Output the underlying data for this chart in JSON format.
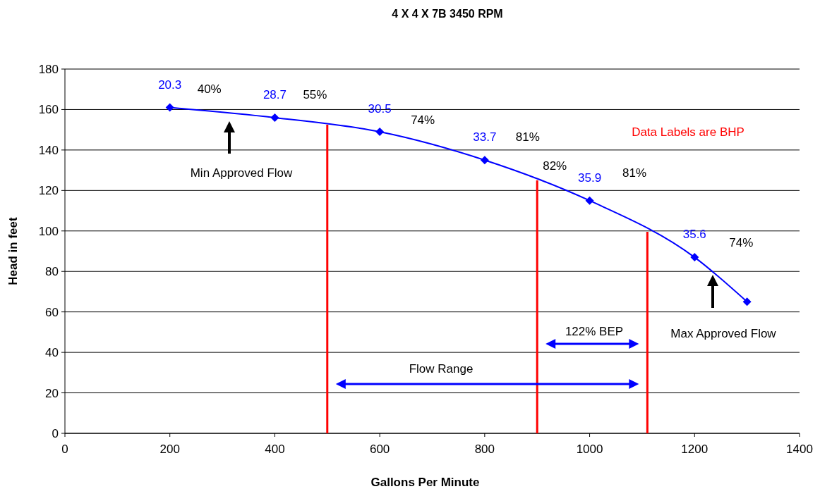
{
  "chart_data": {
    "type": "line",
    "title": "4 X 4 X 7B   3450 RPM",
    "xlabel": "Gallons Per Minute",
    "ylabel": "Head in feet",
    "series": [
      {
        "color": "#0000ff",
        "x": [
          200,
          400,
          600,
          800,
          1000,
          1200,
          1300
        ],
        "values": [
          161,
          156,
          149,
          135,
          115,
          87,
          65
        ]
      }
    ],
    "xlim": [
      0,
      1400
    ],
    "xticks": [
      0,
      200,
      400,
      600,
      800,
      1000,
      1200,
      1400
    ],
    "ylim": [
      0,
      180
    ],
    "yticks": [
      0,
      20,
      40,
      60,
      80,
      100,
      120,
      140,
      160,
      180
    ],
    "grid": "y",
    "marker": "diamond",
    "line_style": "solid",
    "ref_lines": [
      {
        "axis": "x",
        "value": 500,
        "color": "#ff0000"
      },
      {
        "axis": "x",
        "value": 900,
        "color": "#ff0000"
      },
      {
        "axis": "x",
        "value": 1110,
        "color": "#ff0000"
      }
    ],
    "annotations": [
      {
        "text": "20.3",
        "x": 200,
        "y": 161
      },
      {
        "text": "28.7",
        "x": 400,
        "y": 156
      },
      {
        "text": "30.5",
        "x": 600,
        "y": 149
      },
      {
        "text": "33.7",
        "x": 800,
        "y": 135
      },
      {
        "text": "35.9",
        "x": 1000,
        "y": 115
      },
      {
        "text": "35.6",
        "x": 1200,
        "y": 87
      },
      {
        "text": "40%",
        "x": 200,
        "y": 161
      },
      {
        "text": "55%",
        "x": 400,
        "y": 156
      },
      {
        "text": "74%",
        "x": 600,
        "y": 149
      },
      {
        "text": "81%",
        "x": 800,
        "y": 135
      },
      {
        "text": "82%",
        "x": 900,
        "y": 125
      },
      "81%",
      {
        "text": "74%",
        "x": 1200,
        "y": 87
      },
      "Min Approved Flow",
      "Max Approved Flow",
      "Flow Range",
      "122% BEP",
      "Data Labels are BHP"
    ]
  }
}
